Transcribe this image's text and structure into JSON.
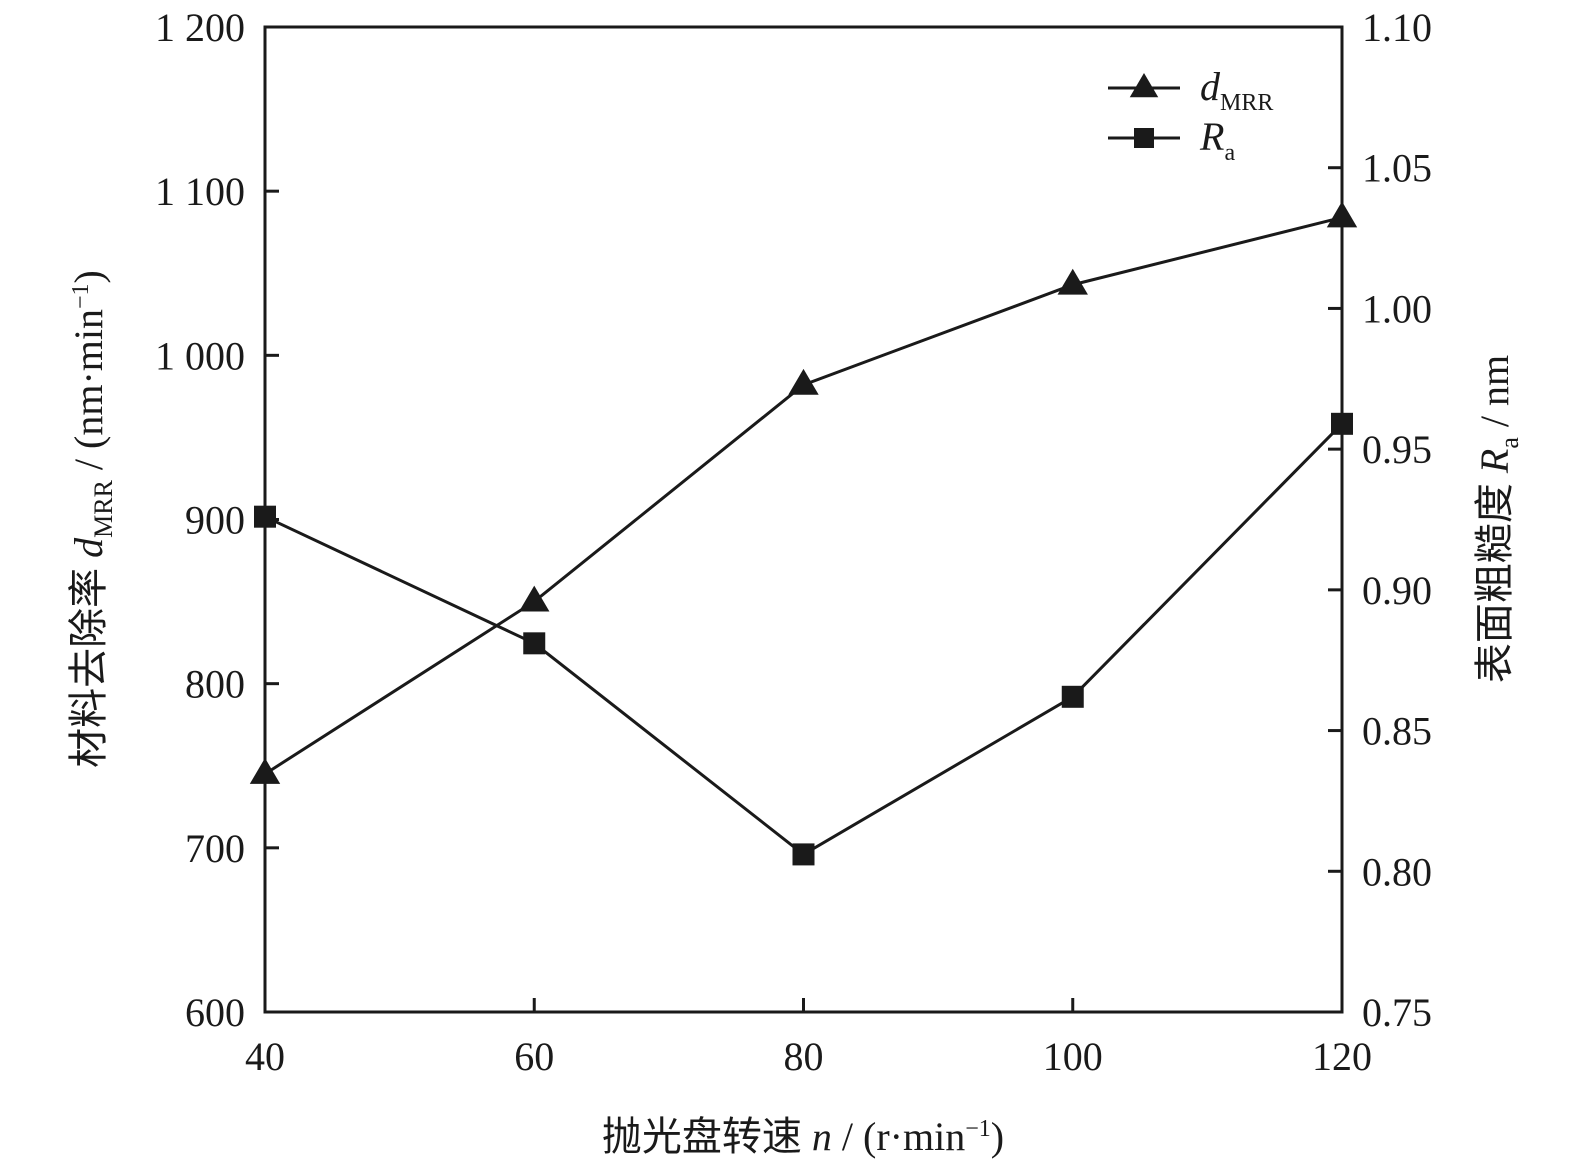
{
  "chart_data": {
    "type": "line",
    "x": [
      40,
      60,
      80,
      100,
      120
    ],
    "xlim": [
      40,
      120
    ],
    "xticks": [
      40,
      60,
      80,
      100,
      120
    ],
    "xtick_labels": [
      "40",
      "60",
      "80",
      "100",
      "120"
    ],
    "xlabel": {
      "main": "抛光盘转速 ",
      "italic": "n",
      "unit_before_sup": " / (r·min",
      "unit_sup": "−1",
      "unit_after_sup": ")"
    },
    "y_left": {
      "lim": [
        600,
        1200
      ],
      "ticks": [
        600,
        700,
        800,
        900,
        1000,
        1100,
        1200
      ],
      "tick_labels": [
        "600",
        "700",
        "800",
        "900",
        "1 000",
        "1 100",
        "1 200"
      ],
      "label": {
        "main": "材料去除率 ",
        "italic": "d",
        "sub": "MRR",
        "unit_before_sup": " / (nm·min",
        "unit_sup": "−1",
        "unit_after_sup": ")"
      }
    },
    "y_right": {
      "lim": [
        0.75,
        1.1
      ],
      "ticks": [
        0.75,
        0.8,
        0.85,
        0.9,
        0.95,
        1.0,
        1.05,
        1.1
      ],
      "tick_labels": [
        "0.75",
        "0.80",
        "0.85",
        "0.90",
        "0.95",
        "1.00",
        "1.05",
        "1.10"
      ],
      "label": {
        "main": "表面粗糙度 ",
        "italic": "R",
        "sub": "a",
        "unit": " / nm"
      }
    },
    "series": [
      {
        "name_italic": "d",
        "name_sub": "MRR",
        "axis": "left",
        "marker": "triangle",
        "values": [
          745,
          850,
          982,
          1043,
          1084
        ]
      },
      {
        "name_italic": "R",
        "name_sub": "a",
        "axis": "right",
        "marker": "square",
        "values": [
          0.926,
          0.881,
          0.806,
          0.862,
          0.959
        ]
      }
    ],
    "legend_position": "top-right",
    "grid": false,
    "colors": {
      "line": "#1a1a1a",
      "marker": "#1a1a1a",
      "axis": "#1a1a1a"
    }
  }
}
